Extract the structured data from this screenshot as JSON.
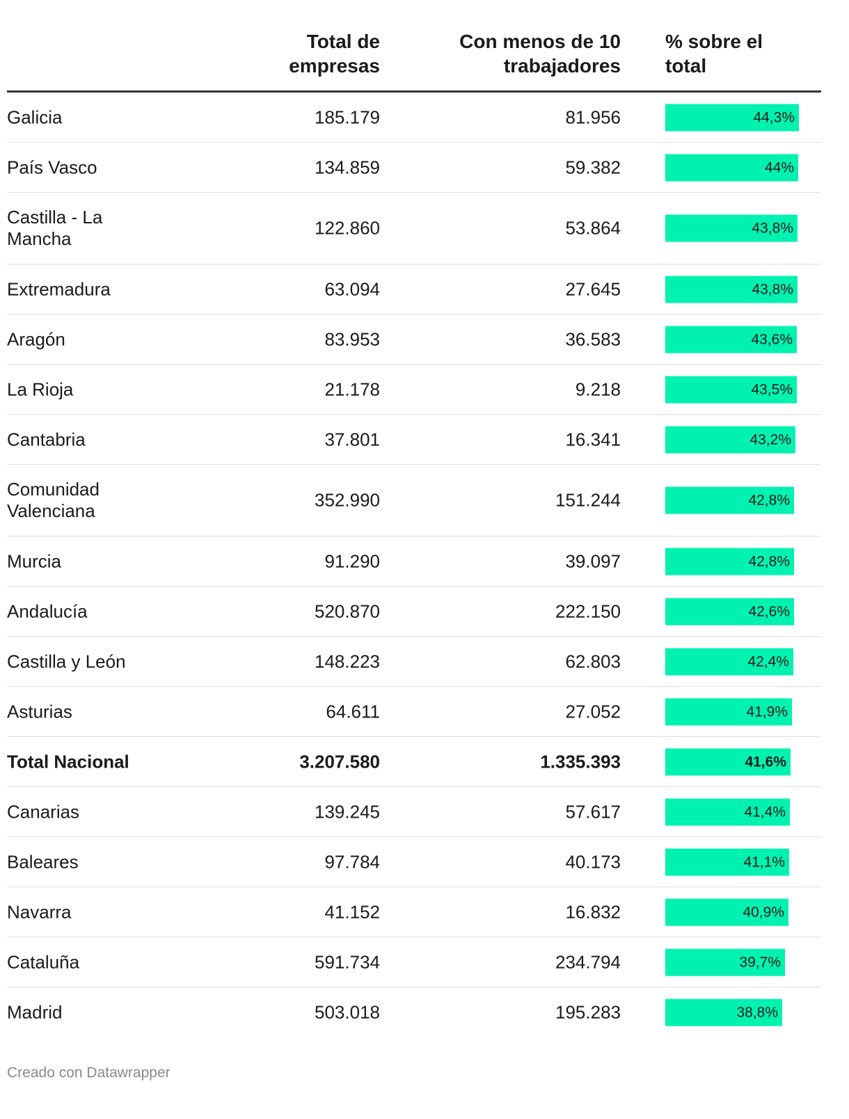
{
  "headers": {
    "region": "",
    "total": [
      "Total de",
      "empresas"
    ],
    "menos": [
      "Con menos de 10",
      "trabajadores"
    ],
    "pct": [
      "% sobre el",
      "total"
    ]
  },
  "rows": [
    {
      "region": [
        "Galicia"
      ],
      "total": "185.179",
      "menos": "81.956",
      "pct": 44.3,
      "pct_label": "44,3%",
      "bold": false
    },
    {
      "region": [
        "País Vasco"
      ],
      "total": "134.859",
      "menos": "59.382",
      "pct": 44.0,
      "pct_label": "44%",
      "bold": false
    },
    {
      "region": [
        "Castilla - La",
        "Mancha"
      ],
      "total": "122.860",
      "menos": "53.864",
      "pct": 43.8,
      "pct_label": "43,8%",
      "bold": false
    },
    {
      "region": [
        "Extremadura"
      ],
      "total": "63.094",
      "menos": "27.645",
      "pct": 43.8,
      "pct_label": "43,8%",
      "bold": false
    },
    {
      "region": [
        "Aragón"
      ],
      "total": "83.953",
      "menos": "36.583",
      "pct": 43.6,
      "pct_label": "43,6%",
      "bold": false
    },
    {
      "region": [
        "La Rioja"
      ],
      "total": "21.178",
      "menos": "9.218",
      "pct": 43.5,
      "pct_label": "43,5%",
      "bold": false
    },
    {
      "region": [
        "Cantabria"
      ],
      "total": "37.801",
      "menos": "16.341",
      "pct": 43.2,
      "pct_label": "43,2%",
      "bold": false
    },
    {
      "region": [
        "Comunidad",
        "Valenciana"
      ],
      "total": "352.990",
      "menos": "151.244",
      "pct": 42.8,
      "pct_label": "42,8%",
      "bold": false
    },
    {
      "region": [
        "Murcia"
      ],
      "total": "91.290",
      "menos": "39.097",
      "pct": 42.8,
      "pct_label": "42,8%",
      "bold": false
    },
    {
      "region": [
        "Andalucía"
      ],
      "total": "520.870",
      "menos": "222.150",
      "pct": 42.6,
      "pct_label": "42,6%",
      "bold": false
    },
    {
      "region": [
        "Castilla y León"
      ],
      "total": "148.223",
      "menos": "62.803",
      "pct": 42.4,
      "pct_label": "42,4%",
      "bold": false
    },
    {
      "region": [
        "Asturias"
      ],
      "total": "64.611",
      "menos": "27.052",
      "pct": 41.9,
      "pct_label": "41,9%",
      "bold": false
    },
    {
      "region": [
        "Total Nacional"
      ],
      "total": "3.207.580",
      "menos": "1.335.393",
      "pct": 41.6,
      "pct_label": "41,6%",
      "bold": true
    },
    {
      "region": [
        "Canarias"
      ],
      "total": "139.245",
      "menos": "57.617",
      "pct": 41.4,
      "pct_label": "41,4%",
      "bold": false
    },
    {
      "region": [
        "Baleares"
      ],
      "total": "97.784",
      "menos": "40.173",
      "pct": 41.1,
      "pct_label": "41,1%",
      "bold": false
    },
    {
      "region": [
        "Navarra"
      ],
      "total": "41.152",
      "menos": "16.832",
      "pct": 40.9,
      "pct_label": "40,9%",
      "bold": false
    },
    {
      "region": [
        "Cataluña"
      ],
      "total": "591.734",
      "menos": "234.794",
      "pct": 39.7,
      "pct_label": "39,7%",
      "bold": false
    },
    {
      "region": [
        "Madrid"
      ],
      "total": "503.018",
      "menos": "195.283",
      "pct": 38.8,
      "pct_label": "38,8%",
      "bold": false
    }
  ],
  "colors": {
    "bar": "#00f2b0",
    "header_rule": "#333333",
    "row_rule": "#e0e0e0",
    "footer_text": "#8a8a8a"
  },
  "chart_data": {
    "type": "table",
    "title": "",
    "columns": [
      "",
      "Total de empresas",
      "Con menos de 10 trabajadores",
      "% sobre el total"
    ],
    "categories": [
      "Galicia",
      "País Vasco",
      "Castilla - La Mancha",
      "Extremadura",
      "Aragón",
      "La Rioja",
      "Cantabria",
      "Comunidad Valenciana",
      "Murcia",
      "Andalucía",
      "Castilla y León",
      "Asturias",
      "Total Nacional",
      "Canarias",
      "Baleares",
      "Navarra",
      "Cataluña",
      "Madrid"
    ],
    "series": [
      {
        "name": "Total de empresas",
        "values": [
          185179,
          134859,
          122860,
          63094,
          83953,
          21178,
          37801,
          352990,
          91290,
          520870,
          148223,
          64611,
          3207580,
          139245,
          97784,
          41152,
          591734,
          503018
        ]
      },
      {
        "name": "Con menos de 10 trabajadores",
        "values": [
          81956,
          59382,
          53864,
          27645,
          36583,
          9218,
          16341,
          151244,
          39097,
          222150,
          62803,
          27052,
          1335393,
          57617,
          40173,
          16832,
          234794,
          195283
        ]
      },
      {
        "name": "% sobre el total",
        "values": [
          44.3,
          44.0,
          43.8,
          43.8,
          43.6,
          43.5,
          43.2,
          42.8,
          42.8,
          42.6,
          42.4,
          41.9,
          41.6,
          41.4,
          41.1,
          40.9,
          39.7,
          38.8
        ]
      }
    ],
    "bar_max": 44.3
  },
  "footer": "Creado con Datawrapper"
}
